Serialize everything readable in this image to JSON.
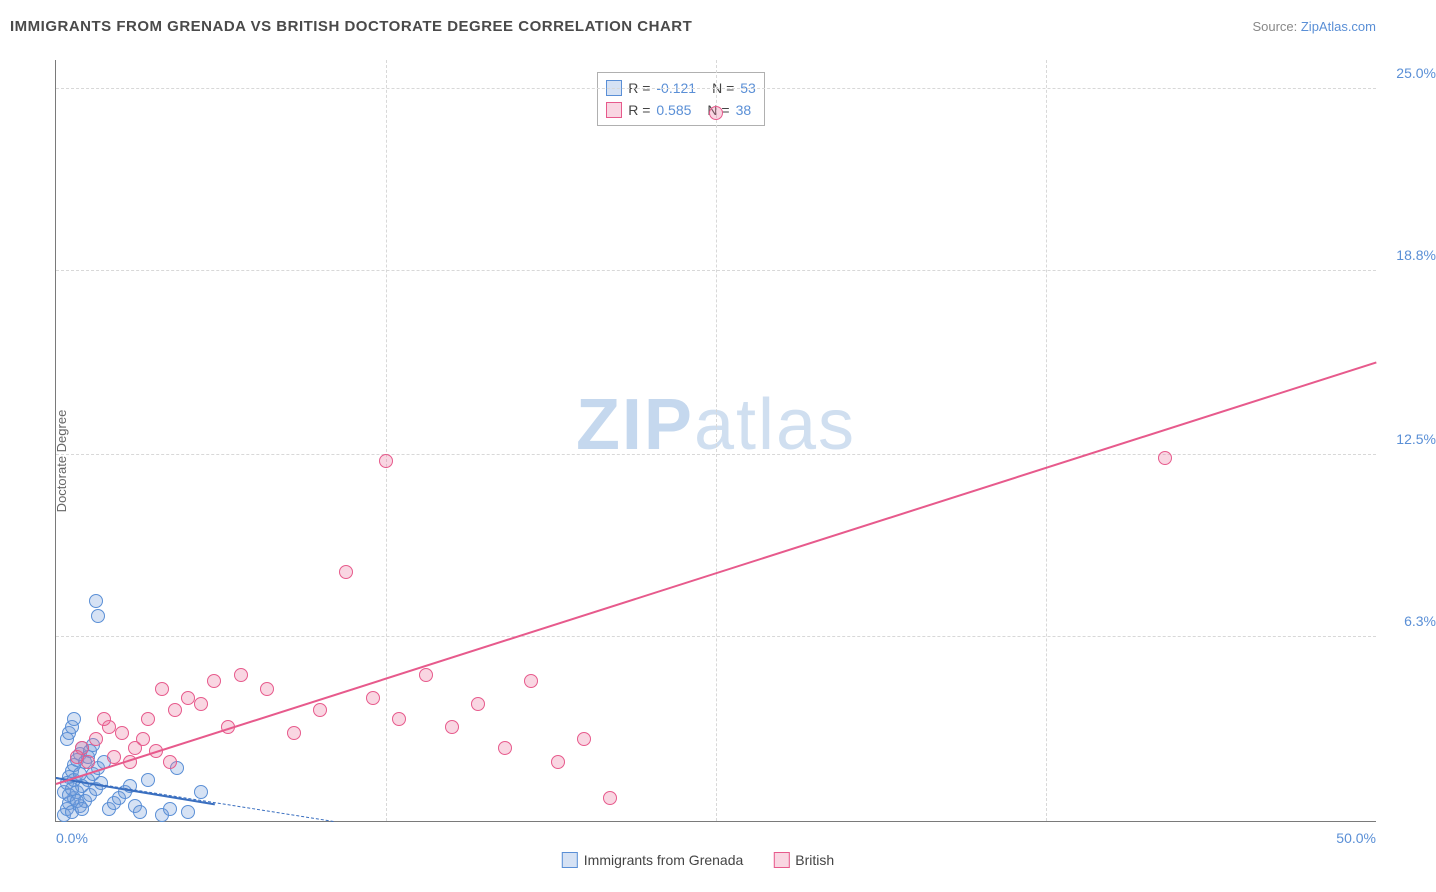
{
  "header": {
    "title": "IMMIGRANTS FROM GRENADA VS BRITISH DOCTORATE DEGREE CORRELATION CHART",
    "source_prefix": "Source: ",
    "source_link": "ZipAtlas.com"
  },
  "watermark": {
    "zip": "ZIP",
    "atlas": "atlas"
  },
  "chart": {
    "type": "scatter",
    "y_axis_label": "Doctorate Degree",
    "xlim": [
      0,
      50
    ],
    "ylim": [
      0,
      26
    ],
    "background_color": "#ffffff",
    "grid_color": "#d8d8d8",
    "axis_color": "#7a7a7a",
    "tick_color": "#5a8fd6",
    "tick_fontsize": 14,
    "y_ticks": [
      {
        "v": 6.3,
        "label": "6.3%"
      },
      {
        "v": 12.5,
        "label": "12.5%"
      },
      {
        "v": 18.8,
        "label": "18.8%"
      },
      {
        "v": 25.0,
        "label": "25.0%"
      }
    ],
    "x_ticks": [
      {
        "v": 0,
        "label": "0.0%"
      },
      {
        "v": 50,
        "label": "50.0%"
      }
    ],
    "x_gridlines": [
      12.5,
      25,
      37.5
    ],
    "marker_radius": 7,
    "marker_border_width": 1,
    "series": [
      {
        "name": "Immigrants from Grenada",
        "fill": "rgba(120,160,220,0.30)",
        "stroke": "#5a8fd6",
        "R": "-0.121",
        "N": "53",
        "trend": {
          "type": "solid",
          "color": "#3a6fc0",
          "width": 2,
          "x1": 0,
          "y1": 1.5,
          "x2": 6,
          "y2": 0.6
        },
        "extrapolate": {
          "type": "dashed",
          "color": "#3a6fc0",
          "width": 1,
          "x1": 0,
          "y1": 1.5,
          "x2": 10.5,
          "y2": 0
        },
        "points": [
          [
            0.3,
            0.2
          ],
          [
            0.4,
            0.4
          ],
          [
            0.5,
            0.6
          ],
          [
            0.6,
            0.3
          ],
          [
            0.7,
            0.8
          ],
          [
            0.8,
            1.0
          ],
          [
            0.9,
            0.5
          ],
          [
            1.0,
            1.2
          ],
          [
            1.1,
            0.7
          ],
          [
            1.2,
            1.4
          ],
          [
            1.3,
            0.9
          ],
          [
            1.4,
            1.6
          ],
          [
            1.5,
            1.1
          ],
          [
            1.6,
            1.8
          ],
          [
            1.7,
            1.3
          ],
          [
            1.8,
            2.0
          ],
          [
            0.5,
            1.5
          ],
          [
            0.6,
            1.7
          ],
          [
            0.7,
            1.9
          ],
          [
            0.8,
            2.1
          ],
          [
            0.9,
            2.3
          ],
          [
            1.0,
            2.5
          ],
          [
            1.1,
            2.0
          ],
          [
            1.2,
            2.2
          ],
          [
            1.3,
            2.4
          ],
          [
            1.4,
            2.6
          ],
          [
            0.4,
            2.8
          ],
          [
            0.5,
            3.0
          ],
          [
            0.6,
            3.2
          ],
          [
            0.7,
            3.5
          ],
          [
            1.5,
            7.5
          ],
          [
            1.6,
            7.0
          ],
          [
            2.0,
            0.4
          ],
          [
            2.2,
            0.6
          ],
          [
            2.4,
            0.8
          ],
          [
            2.6,
            1.0
          ],
          [
            2.8,
            1.2
          ],
          [
            3.0,
            0.5
          ],
          [
            3.2,
            0.3
          ],
          [
            3.5,
            1.4
          ],
          [
            4.0,
            0.2
          ],
          [
            4.3,
            0.4
          ],
          [
            4.6,
            1.8
          ],
          [
            5.0,
            0.3
          ],
          [
            5.5,
            1.0
          ],
          [
            0.3,
            1.0
          ],
          [
            0.4,
            1.3
          ],
          [
            0.5,
            0.9
          ],
          [
            0.6,
            1.1
          ],
          [
            0.7,
            1.4
          ],
          [
            0.8,
            0.7
          ],
          [
            0.9,
            1.6
          ],
          [
            1.0,
            0.4
          ]
        ]
      },
      {
        "name": "British",
        "fill": "rgba(235,120,160,0.30)",
        "stroke": "#e75a8c",
        "R": "0.585",
        "N": "38",
        "trend": {
          "type": "solid",
          "color": "#e75a8c",
          "width": 2,
          "x1": 0,
          "y1": 1.3,
          "x2": 50,
          "y2": 15.7
        },
        "points": [
          [
            1.5,
            2.8
          ],
          [
            2.0,
            3.2
          ],
          [
            2.5,
            3.0
          ],
          [
            3.0,
            2.5
          ],
          [
            3.5,
            3.5
          ],
          [
            4.0,
            4.5
          ],
          [
            4.5,
            3.8
          ],
          [
            5.0,
            4.2
          ],
          [
            5.5,
            4.0
          ],
          [
            6.0,
            4.8
          ],
          [
            6.5,
            3.2
          ],
          [
            7.0,
            5.0
          ],
          [
            8.0,
            4.5
          ],
          [
            9.0,
            3.0
          ],
          [
            10.0,
            3.8
          ],
          [
            11.0,
            8.5
          ],
          [
            12.0,
            4.2
          ],
          [
            12.5,
            12.3
          ],
          [
            13.0,
            3.5
          ],
          [
            14.0,
            5.0
          ],
          [
            15.0,
            3.2
          ],
          [
            16.0,
            4.0
          ],
          [
            17.0,
            2.5
          ],
          [
            18.0,
            4.8
          ],
          [
            19.0,
            2.0
          ],
          [
            20.0,
            2.8
          ],
          [
            21.0,
            0.8
          ],
          [
            25.0,
            24.2
          ],
          [
            42.0,
            12.4
          ],
          [
            2.2,
            2.2
          ],
          [
            2.8,
            2.0
          ],
          [
            3.3,
            2.8
          ],
          [
            3.8,
            2.4
          ],
          [
            4.3,
            2.0
          ],
          [
            1.8,
            3.5
          ],
          [
            1.2,
            2.0
          ],
          [
            1.0,
            2.5
          ],
          [
            0.8,
            2.2
          ]
        ]
      }
    ],
    "legend_top": {
      "R_label": "R =",
      "N_label": "N ="
    },
    "legend_bottom_labels": [
      "Immigrants from Grenada",
      "British"
    ]
  }
}
